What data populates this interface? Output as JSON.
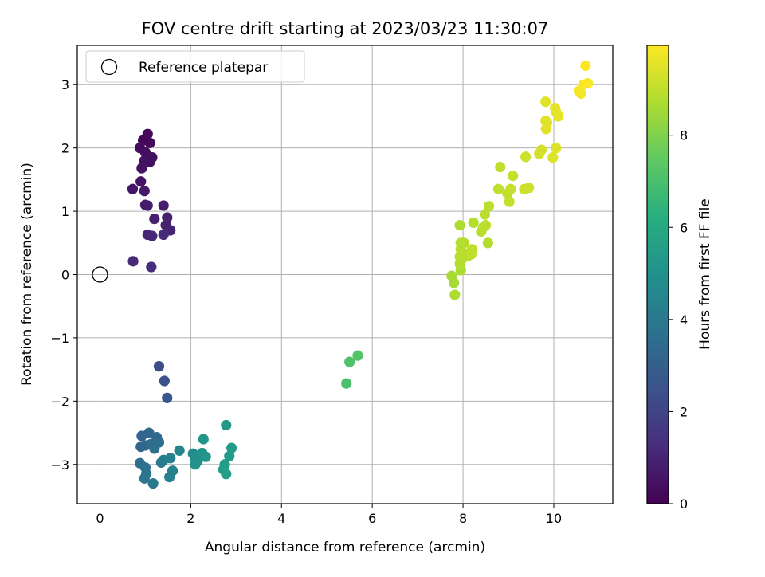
{
  "chart_data": {
    "type": "scatter",
    "title": "FOV centre drift starting at 2023/03/23 11:30:07",
    "xlabel": "Angular distance from reference (arcmin)",
    "ylabel": "Rotation from reference (arcmin)",
    "xlim": [
      -0.5,
      11.3
    ],
    "ylim": [
      -3.62,
      3.62
    ],
    "x_ticks": [
      0,
      2,
      4,
      6,
      8,
      10
    ],
    "y_ticks": [
      -3,
      -2,
      -1,
      0,
      1,
      2,
      3
    ],
    "x_tick_labels": [
      "0",
      "2",
      "4",
      "6",
      "8",
      "10"
    ],
    "y_tick_labels": [
      "−3",
      "−2",
      "−1",
      "0",
      "1",
      "2",
      "3"
    ],
    "grid": true,
    "legend": {
      "position": "top-left",
      "entries": [
        "Reference platepar"
      ]
    },
    "reference_point": {
      "x": 0,
      "y": 0
    },
    "colorbar": {
      "label": "Hours from first FF file",
      "colormap": "viridis",
      "range": [
        0,
        9.95
      ],
      "ticks": [
        0,
        2,
        4,
        6,
        8
      ],
      "tick_labels": [
        "0",
        "2",
        "4",
        "6",
        "8"
      ]
    },
    "points": [
      [
        1.05,
        2.22,
        0.2
      ],
      [
        1.1,
        2.08,
        0.25
      ],
      [
        0.95,
        2.12,
        0.2
      ],
      [
        0.88,
        2.0,
        0.3
      ],
      [
        1.0,
        1.93,
        0.35
      ],
      [
        1.15,
        1.85,
        0.4
      ],
      [
        1.1,
        1.78,
        0.4
      ],
      [
        0.98,
        1.8,
        0.45
      ],
      [
        0.92,
        1.68,
        0.5
      ],
      [
        0.9,
        1.47,
        0.55
      ],
      [
        0.72,
        1.35,
        0.6
      ],
      [
        0.98,
        1.32,
        0.65
      ],
      [
        1.0,
        1.1,
        0.7
      ],
      [
        1.05,
        1.09,
        0.75
      ],
      [
        1.4,
        1.09,
        0.8
      ],
      [
        1.2,
        0.88,
        0.85
      ],
      [
        1.48,
        0.9,
        0.9
      ],
      [
        1.45,
        0.78,
        0.95
      ],
      [
        1.55,
        0.7,
        1.0
      ],
      [
        1.05,
        0.63,
        1.05
      ],
      [
        1.15,
        0.61,
        1.1
      ],
      [
        1.4,
        0.63,
        1.15
      ],
      [
        0.73,
        0.21,
        1.2
      ],
      [
        1.13,
        0.12,
        1.25
      ],
      [
        1.3,
        -1.45,
        2.3
      ],
      [
        1.42,
        -1.68,
        2.5
      ],
      [
        1.48,
        -1.95,
        2.7
      ],
      [
        0.92,
        -2.55,
        3.2
      ],
      [
        1.08,
        -2.5,
        3.3
      ],
      [
        1.25,
        -2.57,
        3.4
      ],
      [
        1.3,
        -2.65,
        3.5
      ],
      [
        1.0,
        -2.7,
        3.4
      ],
      [
        0.9,
        -2.72,
        3.3
      ],
      [
        1.2,
        -2.75,
        3.6
      ],
      [
        1.12,
        -2.68,
        3.5
      ],
      [
        0.88,
        -2.98,
        3.6
      ],
      [
        1.0,
        -3.05,
        3.7
      ],
      [
        1.02,
        -3.15,
        3.8
      ],
      [
        0.98,
        -3.22,
        3.9
      ],
      [
        1.17,
        -3.3,
        4.0
      ],
      [
        1.35,
        -2.97,
        4.1
      ],
      [
        1.4,
        -2.93,
        4.2
      ],
      [
        1.55,
        -2.9,
        4.3
      ],
      [
        1.75,
        -2.78,
        4.5
      ],
      [
        1.6,
        -3.1,
        4.4
      ],
      [
        1.53,
        -3.2,
        4.3
      ],
      [
        2.05,
        -2.83,
        4.8
      ],
      [
        2.1,
        -2.9,
        4.9
      ],
      [
        2.15,
        -2.95,
        4.9
      ],
      [
        2.1,
        -3.0,
        5.0
      ],
      [
        2.25,
        -2.82,
        5.1
      ],
      [
        2.33,
        -2.88,
        5.2
      ],
      [
        2.28,
        -2.6,
        5.2
      ],
      [
        2.78,
        -2.38,
        5.3
      ],
      [
        2.9,
        -2.74,
        5.4
      ],
      [
        2.85,
        -2.87,
        5.4
      ],
      [
        2.75,
        -3.0,
        5.5
      ],
      [
        2.72,
        -3.08,
        5.5
      ],
      [
        2.78,
        -3.15,
        5.6
      ],
      [
        5.43,
        -1.72,
        7.0
      ],
      [
        5.5,
        -1.38,
        7.1
      ],
      [
        5.68,
        -1.28,
        7.2
      ],
      [
        7.75,
        -0.02,
        8.6
      ],
      [
        7.8,
        -0.13,
        8.6
      ],
      [
        7.82,
        -0.32,
        8.7
      ],
      [
        7.95,
        0.07,
        8.7
      ],
      [
        7.93,
        0.17,
        8.8
      ],
      [
        7.98,
        0.25,
        8.8
      ],
      [
        7.93,
        0.28,
        8.9
      ],
      [
        8.05,
        0.33,
        8.9
      ],
      [
        8.12,
        0.3,
        8.9
      ],
      [
        8.18,
        0.32,
        9.0
      ],
      [
        8.2,
        0.4,
        9.0
      ],
      [
        7.95,
        0.4,
        8.9
      ],
      [
        7.95,
        0.5,
        8.8
      ],
      [
        8.02,
        0.5,
        8.8
      ],
      [
        8.55,
        0.5,
        8.8
      ],
      [
        8.4,
        0.68,
        8.9
      ],
      [
        8.45,
        0.75,
        8.9
      ],
      [
        8.5,
        0.78,
        8.9
      ],
      [
        7.93,
        0.78,
        8.7
      ],
      [
        8.23,
        0.82,
        8.8
      ],
      [
        8.48,
        0.95,
        8.9
      ],
      [
        8.57,
        1.08,
        8.9
      ],
      [
        8.78,
        1.35,
        9.0
      ],
      [
        8.98,
        1.28,
        9.0
      ],
      [
        9.02,
        1.15,
        9.1
      ],
      [
        9.05,
        1.35,
        9.1
      ],
      [
        9.35,
        1.35,
        9.2
      ],
      [
        9.45,
        1.37,
        9.2
      ],
      [
        9.1,
        1.56,
        9.1
      ],
      [
        8.82,
        1.7,
        9.0
      ],
      [
        9.38,
        1.86,
        9.2
      ],
      [
        9.68,
        1.91,
        9.3
      ],
      [
        9.73,
        1.97,
        9.3
      ],
      [
        9.98,
        1.85,
        9.4
      ],
      [
        10.05,
        2.0,
        9.4
      ],
      [
        9.83,
        2.3,
        9.5
      ],
      [
        9.82,
        2.43,
        9.5
      ],
      [
        9.85,
        2.4,
        9.5
      ],
      [
        10.1,
        2.5,
        9.6
      ],
      [
        10.03,
        2.63,
        9.6
      ],
      [
        10.05,
        2.57,
        9.6
      ],
      [
        9.82,
        2.73,
        9.5
      ],
      [
        10.55,
        2.9,
        9.8
      ],
      [
        10.6,
        2.86,
        9.8
      ],
      [
        10.65,
        3.0,
        9.85
      ],
      [
        10.75,
        3.02,
        9.9
      ],
      [
        10.7,
        3.3,
        9.95
      ]
    ]
  }
}
